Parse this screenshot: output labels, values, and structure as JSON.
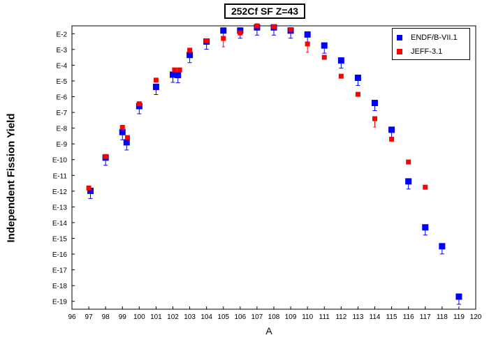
{
  "chart_data": {
    "type": "scatter",
    "title": "252Cf SF Z=43",
    "xlabel": "A",
    "ylabel": "Independent Fission Yield",
    "xlim": [
      96,
      120
    ],
    "ylim_exponent": [
      -19.5,
      -1.5
    ],
    "y_scale": "log",
    "grid": false,
    "legend_position": "top-right",
    "x_ticks": [
      "96",
      "97",
      "98",
      "99",
      "100",
      "101",
      "102",
      "103",
      "104",
      "105",
      "106",
      "107",
      "108",
      "109",
      "110",
      "111",
      "112",
      "113",
      "114",
      "115",
      "116",
      "117",
      "118",
      "119",
      "120"
    ],
    "y_ticks": [
      "E-2",
      "E-3",
      "E-4",
      "E-5",
      "E-6",
      "E-7",
      "E-8",
      "E-9",
      "E-10",
      "E-11",
      "E-12",
      "E-13",
      "E-14",
      "E-15",
      "E-16",
      "E-17",
      "E-18",
      "E-19"
    ],
    "series": [
      {
        "name": "ENDF/B-VII.1",
        "color": "#0000ff",
        "marker": "square",
        "points": [
          {
            "x": 97.1,
            "log10y": -11.98
          },
          {
            "x": 98.0,
            "log10y": -9.87
          },
          {
            "x": 99.0,
            "log10y": -8.25
          },
          {
            "x": 99.25,
            "log10y": -8.9
          },
          {
            "x": 100.0,
            "log10y": -6.6
          },
          {
            "x": 101.0,
            "log10y": -5.38
          },
          {
            "x": 102.0,
            "log10y": -4.6
          },
          {
            "x": 102.3,
            "log10y": -4.63
          },
          {
            "x": 103.0,
            "log10y": -3.35
          },
          {
            "x": 104.0,
            "log10y": -2.5
          },
          {
            "x": 105.0,
            "log10y": -1.8
          },
          {
            "x": 106.0,
            "log10y": -1.8
          },
          {
            "x": 107.0,
            "log10y": -1.6
          },
          {
            "x": 108.0,
            "log10y": -1.6
          },
          {
            "x": 109.0,
            "log10y": -1.8
          },
          {
            "x": 110.0,
            "log10y": -2.05
          },
          {
            "x": 111.0,
            "log10y": -2.75
          },
          {
            "x": 112.0,
            "log10y": -3.7
          },
          {
            "x": 113.0,
            "log10y": -4.8
          },
          {
            "x": 114.0,
            "log10y": -6.4
          },
          {
            "x": 115.0,
            "log10y": -8.1
          },
          {
            "x": 116.0,
            "log10y": -11.38
          },
          {
            "x": 117.0,
            "log10y": -14.3
          },
          {
            "x": 118.0,
            "log10y": -15.5
          },
          {
            "x": 119.0,
            "log10y": -18.7
          }
        ]
      },
      {
        "name": "JEFF-3.1",
        "color": "#ff0000",
        "marker": "square",
        "points": [
          {
            "x": 97.0,
            "log10y": -11.8
          },
          {
            "x": 98.0,
            "log10y": -9.8
          },
          {
            "x": 99.0,
            "log10y": -7.95
          },
          {
            "x": 99.3,
            "log10y": -8.6
          },
          {
            "x": 100.0,
            "log10y": -6.45
          },
          {
            "x": 101.0,
            "log10y": -4.95
          },
          {
            "x": 102.1,
            "log10y": -4.3
          },
          {
            "x": 102.4,
            "log10y": -4.3
          },
          {
            "x": 103.0,
            "log10y": -3.05
          },
          {
            "x": 104.0,
            "log10y": -2.45
          },
          {
            "x": 105.0,
            "log10y": -2.3
          },
          {
            "x": 106.0,
            "log10y": -1.95
          },
          {
            "x": 107.0,
            "log10y": -1.5
          },
          {
            "x": 108.0,
            "log10y": -1.55
          },
          {
            "x": 109.0,
            "log10y": -1.75
          },
          {
            "x": 110.0,
            "log10y": -2.65
          },
          {
            "x": 111.0,
            "log10y": -3.5
          },
          {
            "x": 112.0,
            "log10y": -4.7
          },
          {
            "x": 113.0,
            "log10y": -5.85
          },
          {
            "x": 114.0,
            "log10y": -7.4
          },
          {
            "x": 115.0,
            "log10y": -8.7
          },
          {
            "x": 116.0,
            "log10y": -10.15
          },
          {
            "x": 117.0,
            "log10y": -11.75
          }
        ]
      }
    ]
  }
}
